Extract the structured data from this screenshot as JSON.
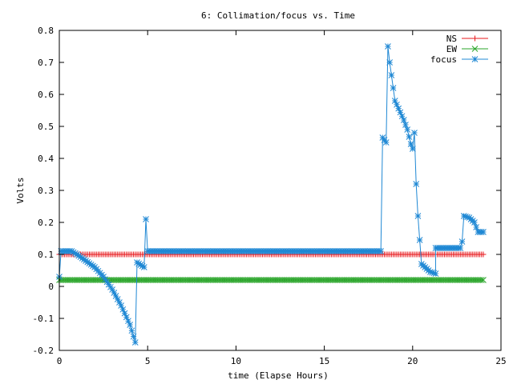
{
  "chart_data": {
    "type": "line",
    "title": "6: Collimation/focus vs. Time",
    "xlabel": "time (Elapse Hours)",
    "ylabel": "Volts",
    "xlim": [
      0,
      25
    ],
    "ylim": [
      -0.2,
      0.8
    ],
    "x_ticks": [
      0,
      5,
      10,
      15,
      20,
      25
    ],
    "y_ticks": [
      -0.2,
      -0.1,
      0,
      0.1,
      0.2,
      0.3,
      0.4,
      0.5,
      0.6,
      0.7,
      0.8
    ],
    "x_tick_labels": [
      "0",
      "5",
      "10",
      "15",
      "20",
      "25"
    ],
    "y_tick_labels": [
      "-0.2",
      "-0.1",
      "0",
      "0.1",
      "0.2",
      "0.3",
      "0.4",
      "0.5",
      "0.6",
      "0.7",
      "0.8"
    ],
    "grid": false,
    "legend_position": "top-right",
    "series": [
      {
        "name": "NS",
        "color": "#e8181c",
        "marker": "plus",
        "x_range": [
          0,
          24
        ],
        "x_step": 0.1,
        "constant_y": 0.1
      },
      {
        "name": "EW",
        "color": "#2aa52a",
        "marker": "cross",
        "x_range": [
          0,
          24
        ],
        "x_step": 0.1,
        "constant_y": 0.02
      },
      {
        "name": "focus",
        "color": "#1f88d4",
        "marker": "star",
        "x_step": 0.1,
        "keypoints": [
          [
            0.0,
            0.03
          ],
          [
            0.1,
            0.11
          ],
          [
            0.7,
            0.11
          ],
          [
            1.0,
            0.1
          ],
          [
            1.5,
            0.08
          ],
          [
            2.0,
            0.06
          ],
          [
            2.5,
            0.03
          ],
          [
            3.0,
            -0.01
          ],
          [
            3.5,
            -0.06
          ],
          [
            4.0,
            -0.12
          ],
          [
            4.3,
            -0.175
          ],
          [
            4.4,
            0.075
          ],
          [
            4.8,
            0.06
          ],
          [
            4.9,
            0.21
          ],
          [
            5.0,
            0.11
          ],
          [
            18.2,
            0.11
          ],
          [
            18.3,
            0.465
          ],
          [
            18.5,
            0.45
          ],
          [
            18.6,
            0.75
          ],
          [
            18.7,
            0.7
          ],
          [
            18.8,
            0.66
          ],
          [
            19.0,
            0.58
          ],
          [
            19.5,
            0.52
          ],
          [
            19.7,
            0.49
          ],
          [
            19.9,
            0.445
          ],
          [
            20.0,
            0.43
          ],
          [
            20.1,
            0.48
          ],
          [
            20.2,
            0.32
          ],
          [
            20.3,
            0.22
          ],
          [
            20.5,
            0.07
          ],
          [
            21.0,
            0.045
          ],
          [
            21.3,
            0.04
          ],
          [
            21.3,
            0.12
          ],
          [
            22.7,
            0.12
          ],
          [
            22.8,
            0.14
          ],
          [
            22.9,
            0.22
          ],
          [
            23.2,
            0.215
          ],
          [
            23.5,
            0.2
          ],
          [
            23.7,
            0.17
          ],
          [
            24.0,
            0.17
          ]
        ]
      }
    ]
  }
}
